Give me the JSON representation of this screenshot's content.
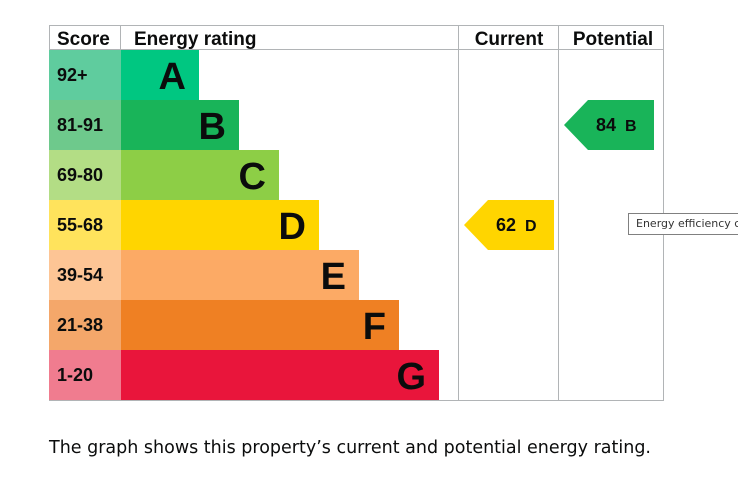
{
  "chart_data": {
    "type": "bar",
    "headers": {
      "score": "Score",
      "rating": "Energy rating",
      "current": "Current",
      "potential": "Potential"
    },
    "bands": [
      {
        "score_range": "92+",
        "letter": "A",
        "color": "#00c781",
        "score_bg": "#5fcc9e"
      },
      {
        "score_range": "81-91",
        "letter": "B",
        "color": "#19b459",
        "score_bg": "#6ec98c"
      },
      {
        "score_range": "69-80",
        "letter": "C",
        "color": "#8dce46",
        "score_bg": "#b3dd85"
      },
      {
        "score_range": "55-68",
        "letter": "D",
        "color": "#ffd500",
        "score_bg": "#ffe35c"
      },
      {
        "score_range": "39-54",
        "letter": "E",
        "color": "#fcaa65",
        "score_bg": "#fdc595"
      },
      {
        "score_range": "21-38",
        "letter": "F",
        "color": "#ef8023",
        "score_bg": "#f4a76a"
      },
      {
        "score_range": "1-20",
        "letter": "G",
        "color": "#e9153b",
        "score_bg": "#f07c8f"
      }
    ],
    "current": {
      "value": 62,
      "letter": "D",
      "label": "62 D"
    },
    "potential": {
      "value": 84,
      "letter": "B",
      "label": "84 B"
    }
  },
  "tooltip_text": "Energy efficiency chart",
  "caption": "The graph shows this property’s current and potential energy rating."
}
